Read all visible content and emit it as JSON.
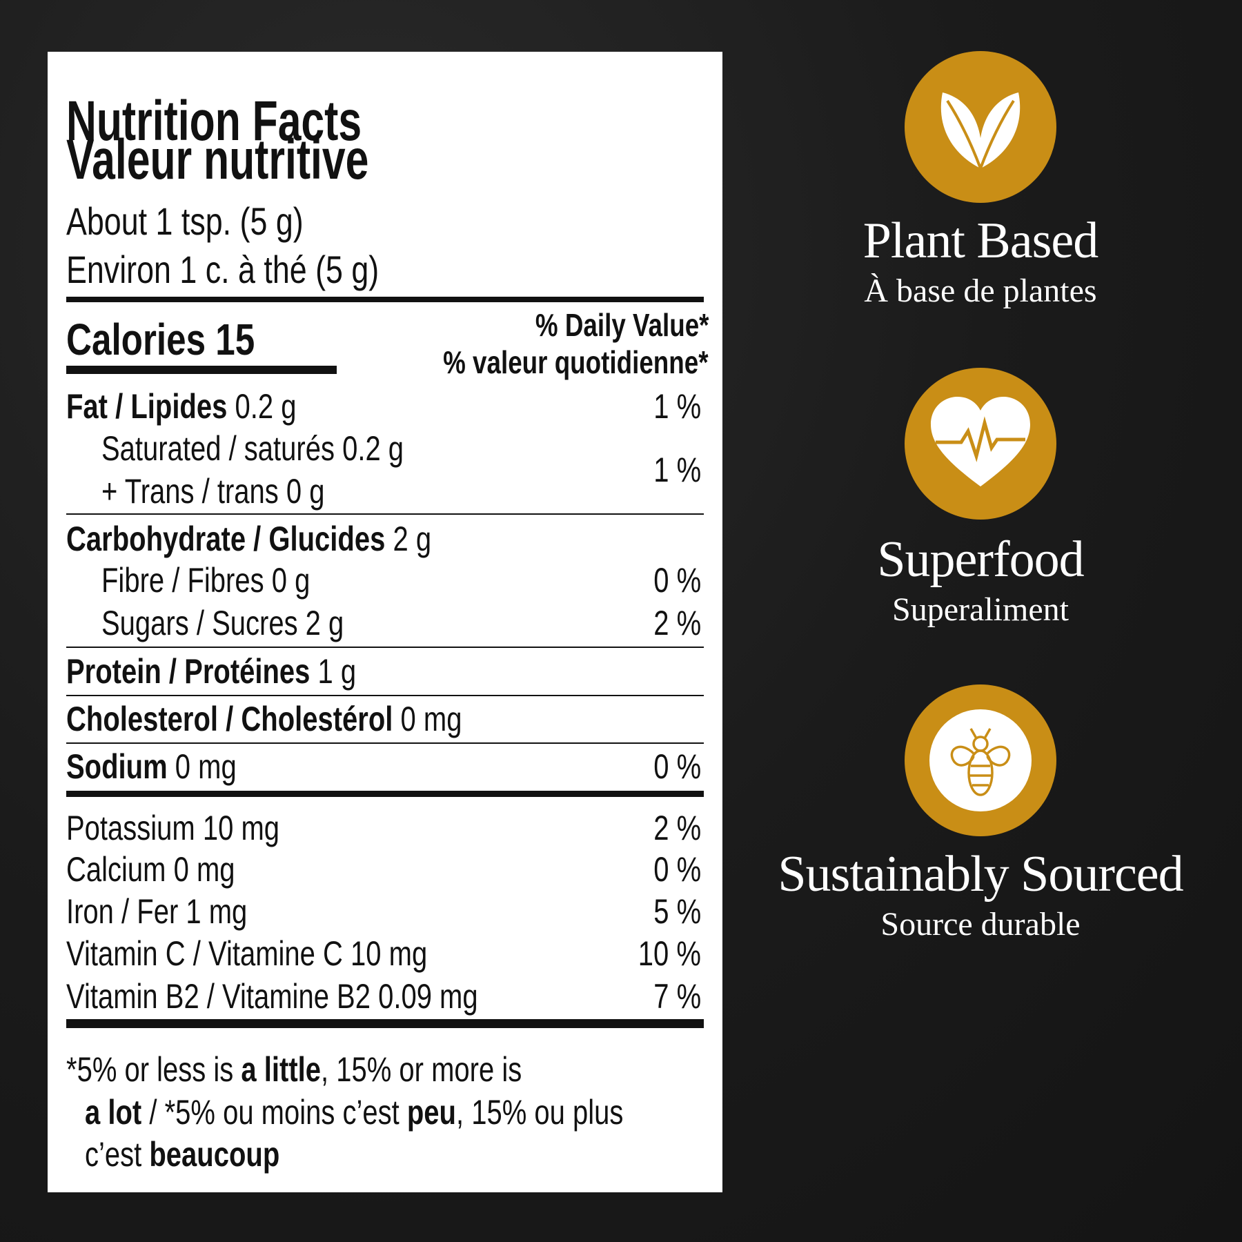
{
  "label": {
    "title": [
      "Nutrition Facts",
      "Valeur nutritive"
    ],
    "serving": [
      "About 1 tsp. (5 g)",
      "Environ 1 c. à thé (5 g)"
    ],
    "calories": "Calories 15",
    "daily_value_header": [
      "% Daily Value*",
      "% valeur quotidienne*"
    ],
    "fat": {
      "name": "Fat / Lipides",
      "amount": "0.2 g",
      "dv": "1 %"
    },
    "fat_sub": {
      "lines": [
        "Saturated / saturés 0.2 g",
        "+ Trans / trans 0 g"
      ],
      "dv": "1 %"
    },
    "carbohydrate": {
      "name": "Carbohydrate / Glucides",
      "amount": "2 g"
    },
    "fibre": {
      "text": "Fibre / Fibres 0 g",
      "dv": "0 %"
    },
    "sugars": {
      "text": "Sugars / Sucres 2 g",
      "dv": "2 %"
    },
    "protein": {
      "name": "Protein / Protéines",
      "amount": "1 g"
    },
    "cholesterol": {
      "name": "Cholesterol / Cholestérol",
      "amount": "0 mg"
    },
    "sodium": {
      "name": "Sodium",
      "amount": "0 mg",
      "dv": "0 %"
    },
    "minerals": [
      {
        "text": "Potassium 10 mg",
        "dv": "2 %"
      },
      {
        "text": "Calcium 0 mg",
        "dv": "0 %"
      },
      {
        "text": "Iron / Fer 1 mg",
        "dv": "5 %"
      },
      {
        "text": "Vitamin C / Vitamine C 10 mg",
        "dv": "10 %"
      },
      {
        "text": "Vitamin B2 / Vitamine B2 0.09 mg",
        "dv": "7 %"
      }
    ],
    "footnote": [
      "*5% or less is ",
      "a little",
      ", 15% or more is",
      "a lot",
      " / *5% ou moins c’est ",
      "peu",
      ", 15% ou plus",
      "c’est ",
      "beaucoup"
    ]
  },
  "badges": [
    {
      "title": "Plant Based",
      "subtitle": "À base de plantes"
    },
    {
      "title": "Superfood",
      "subtitle": "Superaliment"
    },
    {
      "title": "Sustainably Sourced",
      "subtitle": "Source durable"
    }
  ]
}
